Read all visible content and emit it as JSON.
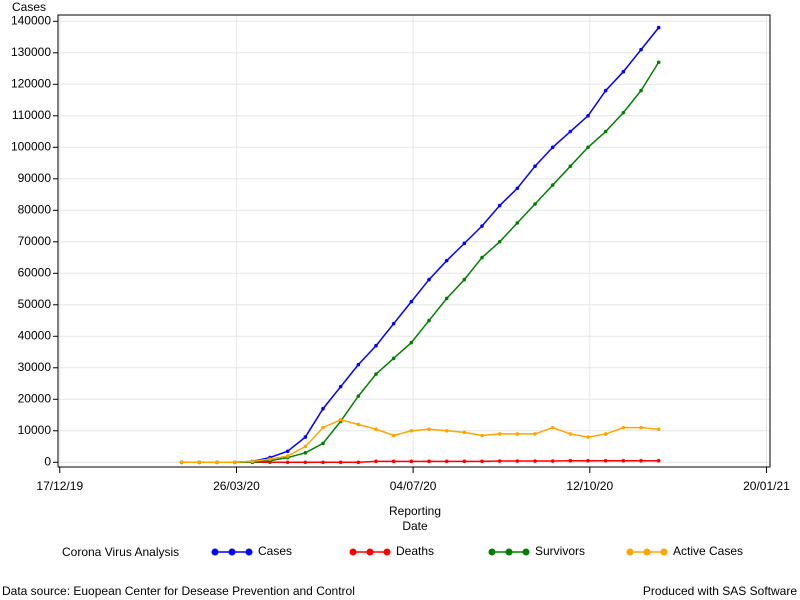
{
  "chart_data": {
    "type": "line",
    "y_label": "Cases",
    "x_label": [
      "Reporting",
      "Date"
    ],
    "legend_title": "Corona Virus Analysis",
    "footnote_left": "Data source: Euopean Center for Desease Prevention and Control",
    "footnote_right": "Produced with SAS Software",
    "grid": true,
    "legend_position": "bottom",
    "x": [
      "2020-02-24",
      "2020-03-05",
      "2020-03-15",
      "2020-03-25",
      "2020-04-04",
      "2020-04-14",
      "2020-04-24",
      "2020-05-04",
      "2020-05-14",
      "2020-05-24",
      "2020-06-03",
      "2020-06-13",
      "2020-06-23",
      "2020-07-03",
      "2020-07-13",
      "2020-07-23",
      "2020-08-02",
      "2020-08-12",
      "2020-08-22",
      "2020-09-01",
      "2020-09-11",
      "2020-09-21",
      "2020-10-01",
      "2020-10-11",
      "2020-10-21",
      "2020-10-31",
      "2020-11-10",
      "2020-11-20"
    ],
    "series": [
      {
        "name": "Cases",
        "color": "#0000ff",
        "values": [
          0,
          0,
          0,
          0,
          300,
          1500,
          3500,
          8000,
          17000,
          24000,
          31000,
          37000,
          44000,
          51000,
          58000,
          64000,
          69500,
          75000,
          81500,
          87000,
          94000,
          100000,
          105000,
          110000,
          118000,
          124000,
          131000,
          138000
        ]
      },
      {
        "name": "Deaths",
        "color": "#ff0000",
        "values": [
          0,
          0,
          0,
          0,
          0,
          0,
          0,
          0,
          0,
          0,
          0,
          300,
          300,
          300,
          300,
          300,
          300,
          300,
          400,
          400,
          400,
          400,
          500,
          500,
          500,
          500,
          500,
          500
        ]
      },
      {
        "name": "Survivors",
        "color": "#008000",
        "values": [
          0,
          0,
          0,
          0,
          0,
          500,
          1500,
          3000,
          6000,
          13000,
          21000,
          28000,
          33000,
          38000,
          45000,
          52000,
          58000,
          65000,
          70000,
          76000,
          82000,
          88000,
          94000,
          100000,
          105000,
          111000,
          118000,
          127000
        ]
      },
      {
        "name": "Active Cases",
        "color": "#ffa500",
        "values": [
          0,
          0,
          0,
          0,
          300,
          1000,
          2000,
          5000,
          11000,
          13500,
          12000,
          10500,
          8500,
          10000,
          10500,
          10000,
          9500,
          8500,
          9000,
          9000,
          9000,
          11000,
          9000,
          8000,
          9000,
          11000,
          11000,
          10500
        ]
      }
    ],
    "xlim": [
      "2019-12-16",
      "2021-01-22"
    ],
    "xticks": [
      {
        "value": "2019-12-17",
        "label": "17/12/19"
      },
      {
        "value": "2020-03-26",
        "label": "26/03/20"
      },
      {
        "value": "2020-07-04",
        "label": "04/07/20"
      },
      {
        "value": "2020-10-12",
        "label": "12/10/20"
      },
      {
        "value": "2021-01-20",
        "label": "20/01/21"
      }
    ],
    "ylim": [
      -1500,
      142000
    ],
    "yticks": [
      0,
      10000,
      20000,
      30000,
      40000,
      50000,
      60000,
      70000,
      80000,
      90000,
      100000,
      110000,
      120000,
      130000,
      140000
    ]
  }
}
